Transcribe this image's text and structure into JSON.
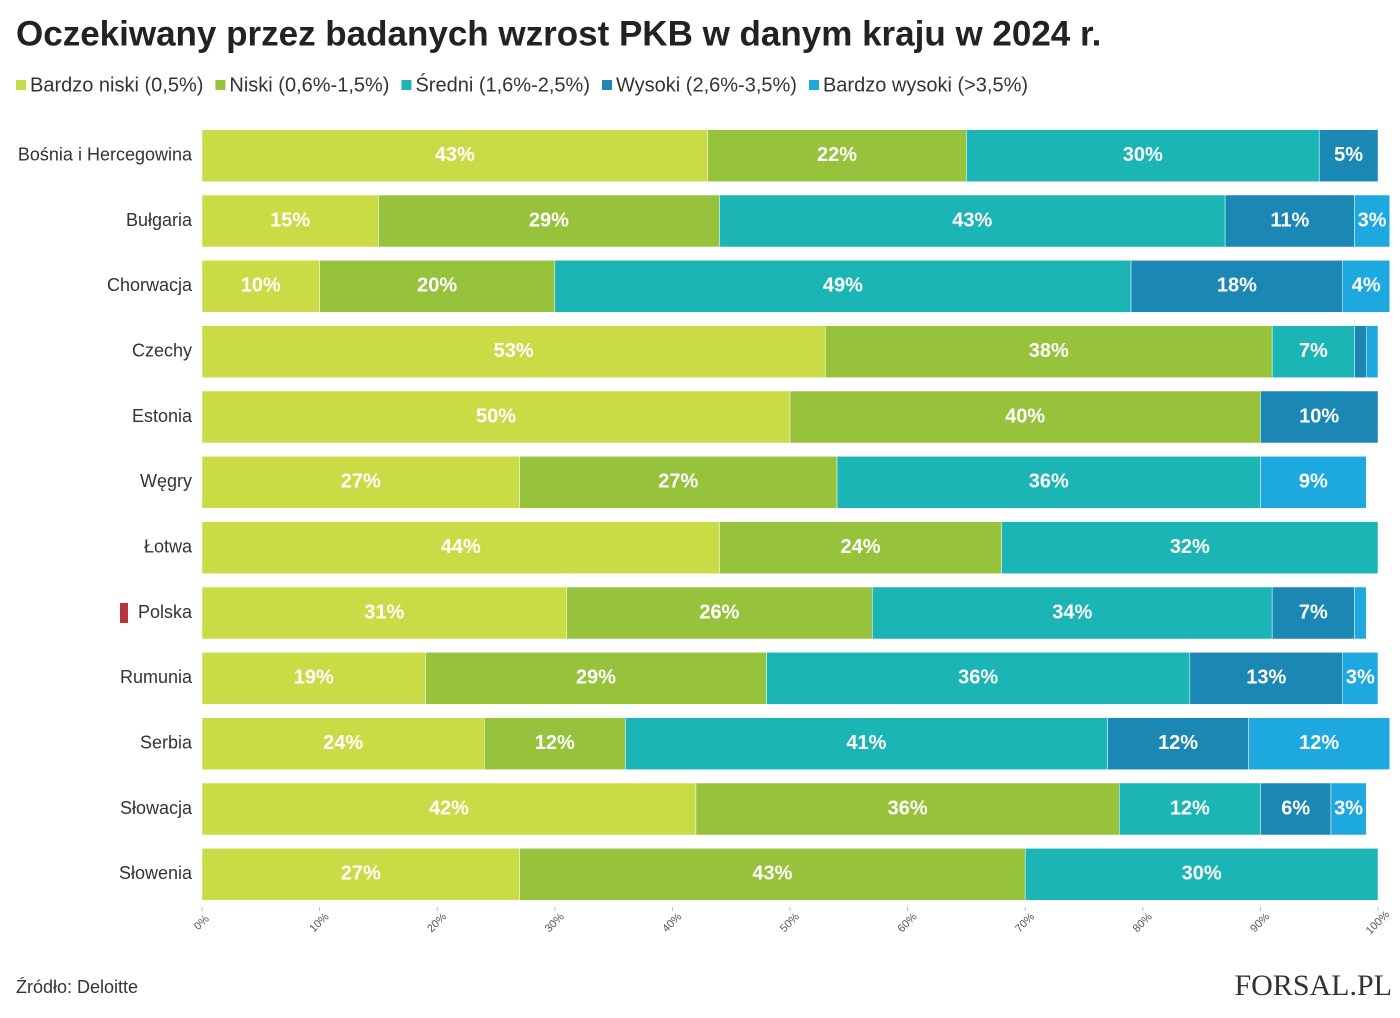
{
  "chart_data": {
    "type": "stacked-barh",
    "title": "Oczekiwany przez badanych wzrost PKB w danym kraju w 2024 r.",
    "source": "Źródło: Deloitte",
    "logo": "FORSAL.PL",
    "categories": [
      "Bośnia i Hercegowina",
      "Bułgaria",
      "Chorwacja",
      "Czechy",
      "Estonia",
      "Węgry",
      "Łotwa",
      "Polska",
      "Rumunia",
      "Serbia",
      "Słowacja",
      "Słowenia"
    ],
    "highlight": "Polska",
    "highlight_color": "#b5343a",
    "xlim": [
      0,
      100
    ],
    "xticks": [
      {
        "value": 0,
        "label": "0%"
      },
      {
        "value": 10,
        "label": "10%"
      },
      {
        "value": 20,
        "label": "20%"
      },
      {
        "value": 30,
        "label": "30%"
      },
      {
        "value": 40,
        "label": "40%"
      },
      {
        "value": 50,
        "label": "50%"
      },
      {
        "value": 60,
        "label": "60%"
      },
      {
        "value": 70,
        "label": "70%"
      },
      {
        "value": 80,
        "label": "80%"
      },
      {
        "value": 90,
        "label": "90%"
      },
      {
        "value": 100,
        "label": "100%"
      }
    ],
    "grid": false,
    "series": [
      {
        "name": "Bardzo niski (0,5%)",
        "color": "#c9dc45",
        "values": [
          43,
          15,
          10,
          53,
          50,
          27,
          44,
          31,
          19,
          24,
          42,
          27
        ],
        "value_labels": [
          "43%",
          "15%",
          "10%",
          "53%",
          "50%",
          "27%",
          "44%",
          "31%",
          "19%",
          "24%",
          "42%",
          "27%"
        ]
      },
      {
        "name": "Niski (0,6%-1,5%)",
        "color": "#97c23c",
        "values": [
          22,
          29,
          20,
          38,
          40,
          27,
          24,
          26,
          29,
          12,
          36,
          43
        ],
        "value_labels": [
          "22%",
          "29%",
          "20%",
          "38%",
          "40%",
          "27%",
          "24%",
          "26%",
          "29%",
          "12%",
          "36%",
          "43%"
        ]
      },
      {
        "name": "Średni (1,6%-2,5%)",
        "color": "#1bb5b5",
        "values": [
          30,
          43,
          49,
          7,
          0,
          36,
          32,
          34,
          36,
          41,
          12,
          30
        ],
        "value_labels": [
          "30%",
          "43%",
          "49%",
          "7%",
          null,
          "36%",
          "32%",
          "34%",
          "36%",
          "41%",
          "12%",
          "30%"
        ]
      },
      {
        "name": "Wysoki (2,6%-3,5%)",
        "color": "#1a87b5",
        "values": [
          5,
          11,
          18,
          1,
          10,
          0,
          0,
          7,
          13,
          12,
          6,
          0
        ],
        "value_labels": [
          "5%",
          "11%",
          "18%",
          null,
          "10%",
          null,
          null,
          "7%",
          "13%",
          "12%",
          "6%",
          null
        ]
      },
      {
        "name": "Bardzo wysoki (>3,5%)",
        "color": "#1ea8e0",
        "values": [
          0,
          3,
          4,
          1,
          0,
          9,
          0,
          1,
          3,
          12,
          3,
          0
        ],
        "value_labels": [
          null,
          "3%",
          "4%",
          null,
          null,
          "9%",
          null,
          null,
          "3%",
          "12%",
          "3%",
          null
        ]
      }
    ]
  }
}
